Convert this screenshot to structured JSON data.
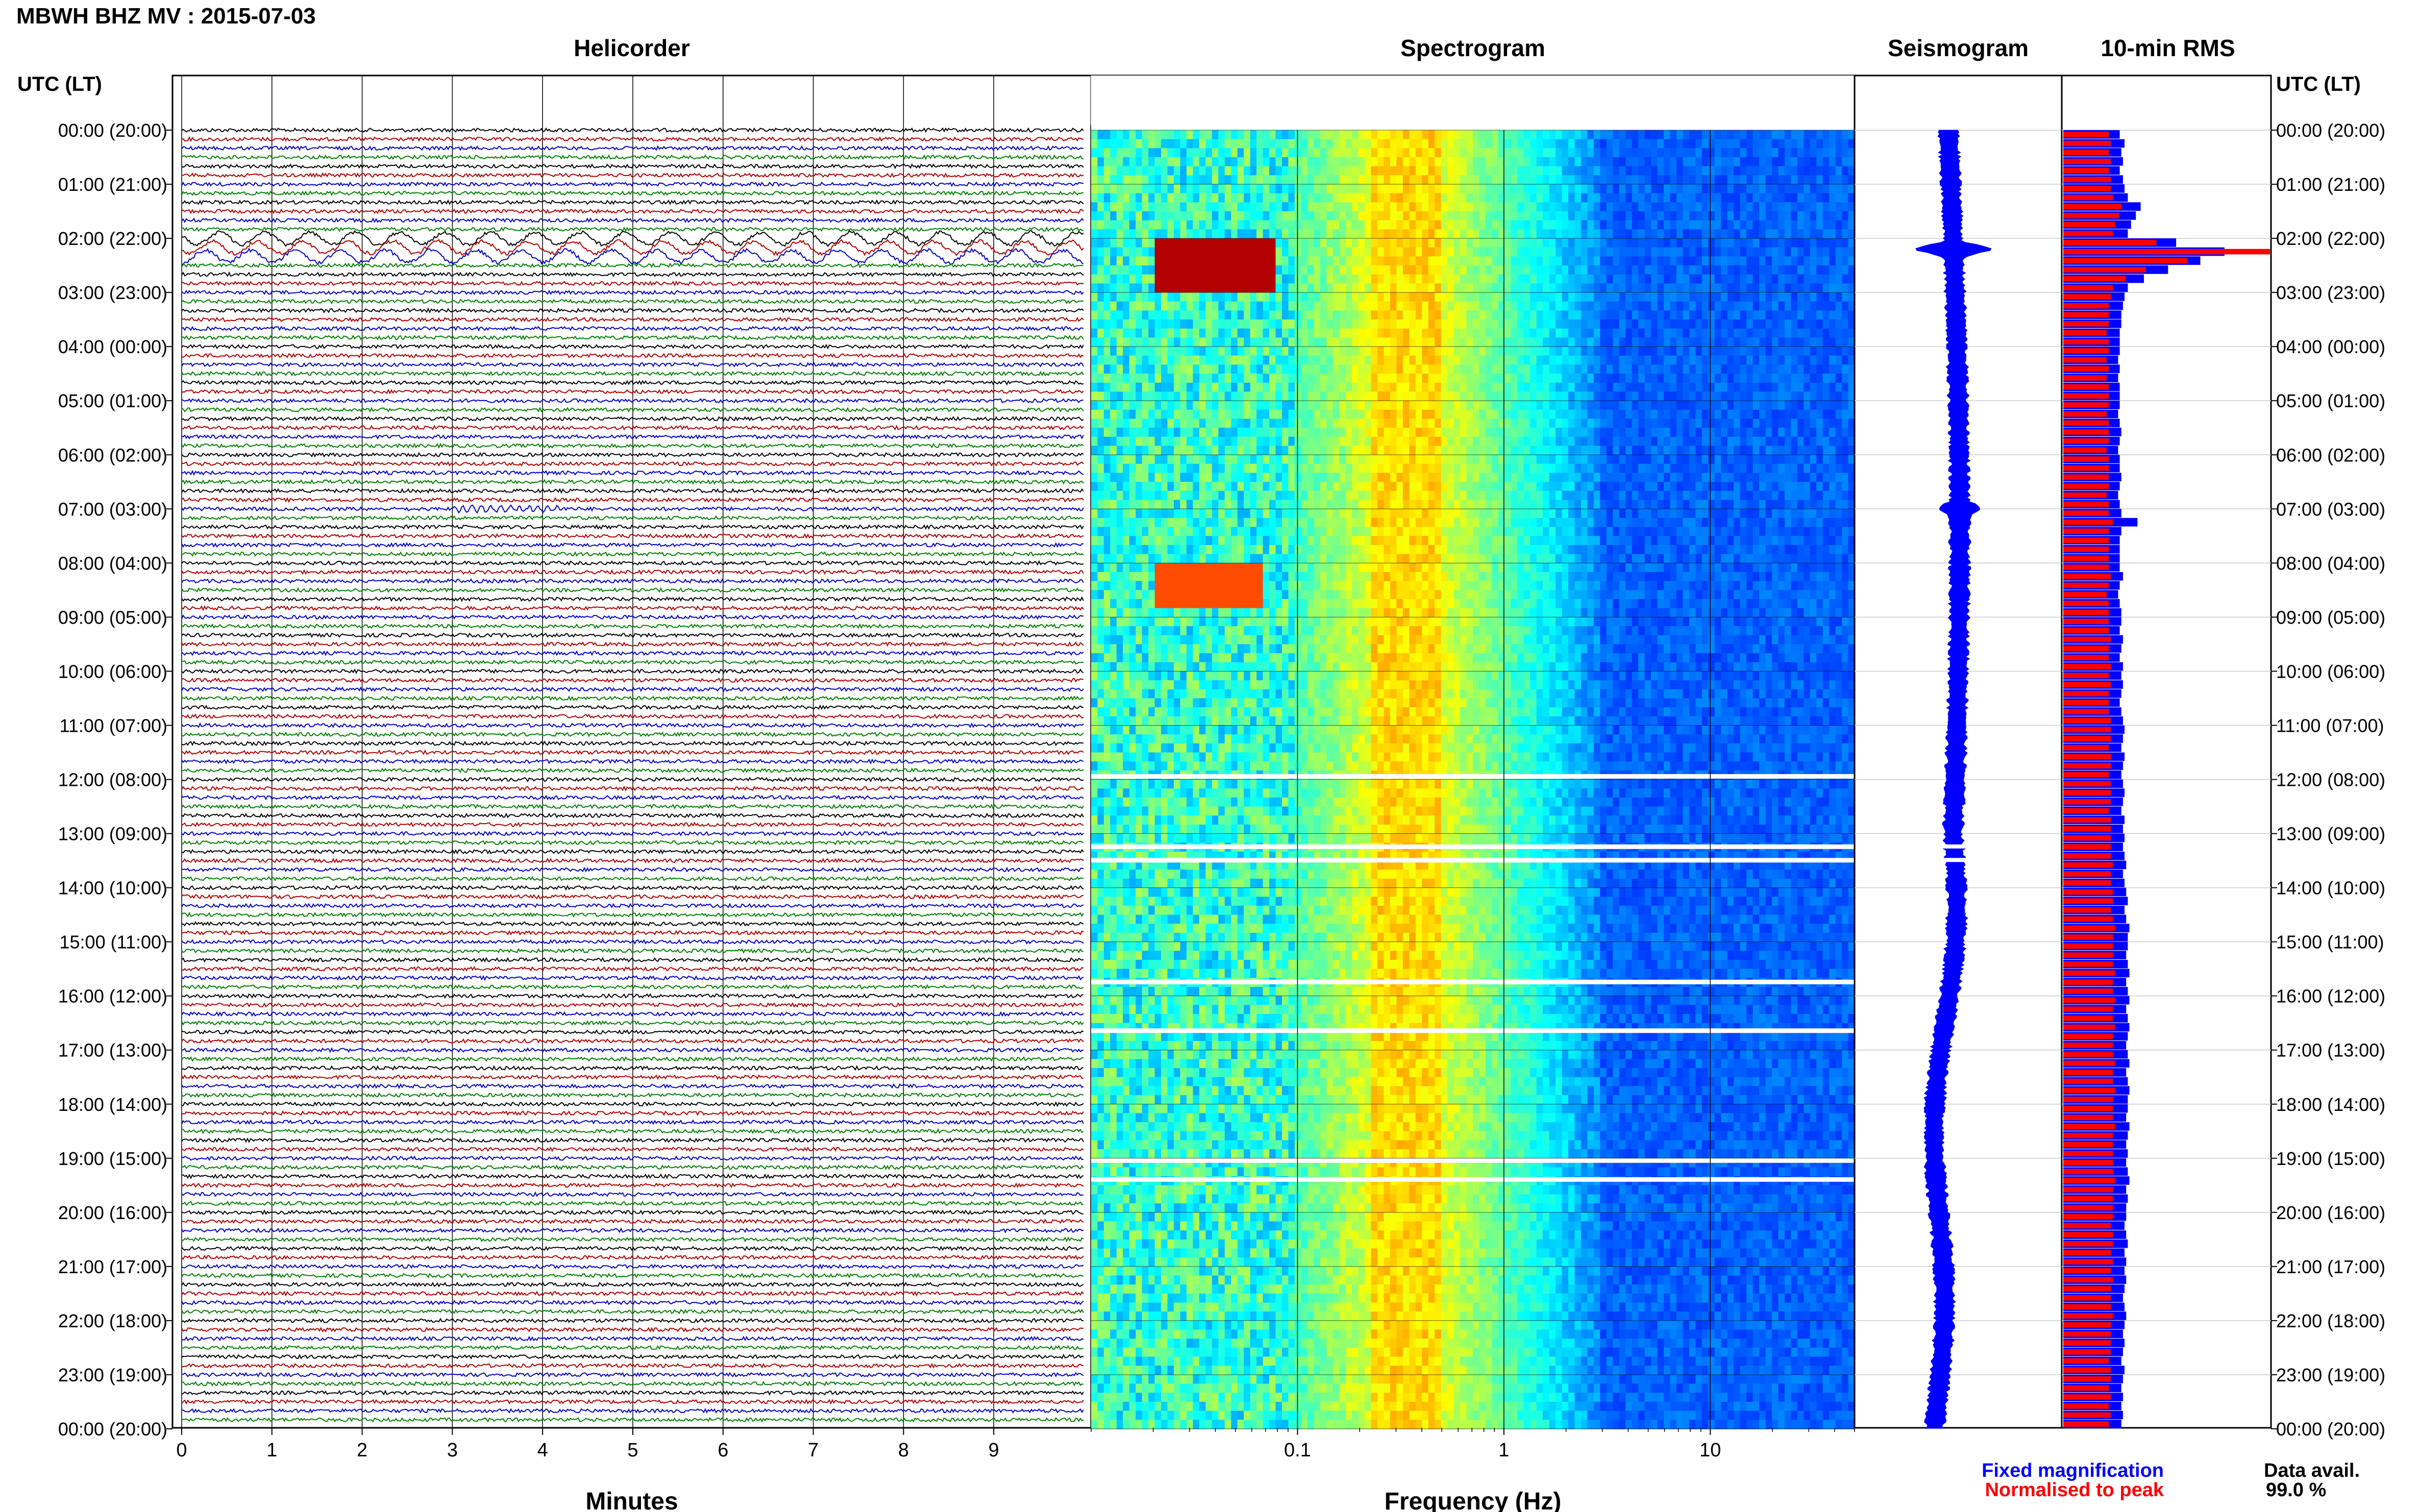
{
  "header": {
    "station_title": "MBWH BHZ MV : 2015-07-03"
  },
  "panels": {
    "helicorder": "Helicorder",
    "spectrogram": "Spectrogram",
    "seismogram": "Seismogram",
    "rms": "10-min RMS"
  },
  "axis_labels": {
    "time_left": "UTC (LT)",
    "time_right": "UTC (LT)",
    "minutes": "Minutes",
    "frequency": "Frequency (Hz)"
  },
  "legend": {
    "fixed": "Fixed magnification",
    "normalised": "Normalised to peak",
    "fixed_color": "#0000ff",
    "normalised_color": "#ff0000"
  },
  "data_avail": {
    "label": "Data avail.",
    "value": "99.0 %"
  },
  "time_ticks": [
    "00:00 (20:00)",
    "01:00 (21:00)",
    "02:00 (22:00)",
    "03:00 (23:00)",
    "04:00 (00:00)",
    "05:00 (01:00)",
    "06:00 (02:00)",
    "07:00 (03:00)",
    "08:00 (04:00)",
    "09:00 (05:00)",
    "10:00 (06:00)",
    "11:00 (07:00)",
    "12:00 (08:00)",
    "13:00 (09:00)",
    "14:00 (10:00)",
    "15:00 (11:00)",
    "16:00 (12:00)",
    "17:00 (13:00)",
    "18:00 (14:00)",
    "19:00 (15:00)",
    "20:00 (16:00)",
    "21:00 (17:00)",
    "22:00 (18:00)",
    "23:00 (19:00)",
    "00:00 (20:00)"
  ],
  "chart_data": [
    {
      "type": "line",
      "panel": "helicorder",
      "xlabel": "Minutes",
      "xlim": [
        0,
        10
      ],
      "x_ticks": [
        0,
        1,
        2,
        3,
        4,
        5,
        6,
        7,
        8,
        9
      ],
      "lines_per_hour": 6,
      "trace_colors": [
        "#000000",
        "#b00000",
        "#0000c8",
        "#008000"
      ],
      "events": [
        {
          "hour": 2.0,
          "hour_end": 2.5,
          "amplitude": "large",
          "note_period_minutes": 0.5
        },
        {
          "hour": 7.0,
          "hour_end": 7.1,
          "amplitude": "small"
        }
      ]
    },
    {
      "type": "heatmap",
      "panel": "spectrogram",
      "xlabel": "Frequency (Hz)",
      "xscale": "log",
      "xlim": [
        0.01,
        50
      ],
      "x_ticks": [
        0.1,
        1,
        10
      ],
      "colormap": "jet",
      "ridge_low_hz": 0.25,
      "noise_corner_hz": 3,
      "gaps_hours": [
        11.9,
        13.2,
        13.45,
        15.7,
        16.6,
        19.0,
        19.35
      ],
      "hot_spots": [
        {
          "hour_from": 2.0,
          "hour_to": 2.9,
          "f_from": 0.02,
          "f_to": 0.08,
          "level": "red"
        },
        {
          "hour_from": 8.0,
          "hour_to": 8.7,
          "f_from": 0.02,
          "f_to": 0.07,
          "level": "orange"
        }
      ]
    },
    {
      "type": "line",
      "panel": "seismogram",
      "color": "#0000ff",
      "events": [
        {
          "hour": 2.2,
          "amplitude": "large"
        },
        {
          "hour": 7.0,
          "amplitude": "small"
        }
      ]
    },
    {
      "type": "bar",
      "panel": "rms",
      "orientation": "horizontal",
      "bin_minutes": 10,
      "series": [
        {
          "name": "Fixed magnification",
          "color": "#0000ff"
        },
        {
          "name": "Normalised to peak",
          "color": "#ff0000"
        }
      ],
      "fixed_values": [
        0.35,
        0.38,
        0.36,
        0.37,
        0.35,
        0.37,
        0.38,
        0.4,
        0.48,
        0.45,
        0.42,
        0.4,
        0.7,
        1.0,
        0.85,
        0.65,
        0.5,
        0.4,
        0.38,
        0.37,
        0.36,
        0.36,
        0.35,
        0.35,
        0.35,
        0.34,
        0.35,
        0.34,
        0.35,
        0.35,
        0.35,
        0.34,
        0.35,
        0.36,
        0.35,
        0.34,
        0.35,
        0.35,
        0.36,
        0.35,
        0.34,
        0.35,
        0.36,
        0.46,
        0.36,
        0.35,
        0.35,
        0.35,
        0.35,
        0.37,
        0.35,
        0.34,
        0.35,
        0.36,
        0.36,
        0.35,
        0.37,
        0.36,
        0.35,
        0.37,
        0.36,
        0.37,
        0.36,
        0.35,
        0.36,
        0.37,
        0.38,
        0.37,
        0.36,
        0.38,
        0.37,
        0.36,
        0.37,
        0.38,
        0.37,
        0.36,
        0.38,
        0.37,
        0.38,
        0.37,
        0.38,
        0.39,
        0.37,
        0.38,
        0.39,
        0.4,
        0.38,
        0.39,
        0.41,
        0.4,
        0.4,
        0.39,
        0.4,
        0.41,
        0.39,
        0.4,
        0.41,
        0.39,
        0.4,
        0.41,
        0.4,
        0.39,
        0.4,
        0.41,
        0.39,
        0.4,
        0.41,
        0.4,
        0.4,
        0.39,
        0.41,
        0.4,
        0.39,
        0.4,
        0.39,
        0.4,
        0.41,
        0.39,
        0.4,
        0.39,
        0.39,
        0.38,
        0.39,
        0.4,
        0.38,
        0.39,
        0.38,
        0.39,
        0.38,
        0.37,
        0.38,
        0.39,
        0.38,
        0.37,
        0.38,
        0.37,
        0.36,
        0.38,
        0.37,
        0.36,
        0.37,
        0.36,
        0.37,
        0.36
      ],
      "normalised_values": [
        0.22,
        0.23,
        0.22,
        0.23,
        0.22,
        0.23,
        0.23,
        0.24,
        0.28,
        0.27,
        0.25,
        0.24,
        0.45,
        1.0,
        0.6,
        0.4,
        0.3,
        0.24,
        0.23,
        0.22,
        0.22,
        0.22,
        0.21,
        0.22,
        0.22,
        0.21,
        0.22,
        0.21,
        0.22,
        0.22,
        0.22,
        0.21,
        0.22,
        0.22,
        0.22,
        0.21,
        0.22,
        0.22,
        0.22,
        0.22,
        0.21,
        0.22,
        0.22,
        0.24,
        0.22,
        0.22,
        0.22,
        0.22,
        0.22,
        0.23,
        0.22,
        0.21,
        0.22,
        0.22,
        0.22,
        0.22,
        0.23,
        0.22,
        0.22,
        0.23,
        0.22,
        0.23,
        0.22,
        0.22,
        0.22,
        0.23,
        0.23,
        0.23,
        0.22,
        0.23,
        0.23,
        0.22,
        0.23,
        0.23,
        0.23,
        0.22,
        0.23,
        0.23,
        0.23,
        0.23,
        0.23,
        0.24,
        0.23,
        0.23,
        0.24,
        0.24,
        0.23,
        0.24,
        0.25,
        0.24,
        0.24,
        0.24,
        0.24,
        0.25,
        0.24,
        0.24,
        0.25,
        0.24,
        0.24,
        0.25,
        0.24,
        0.24,
        0.24,
        0.25,
        0.24,
        0.24,
        0.25,
        0.24,
        0.24,
        0.24,
        0.25,
        0.24,
        0.24,
        0.24,
        0.24,
        0.24,
        0.25,
        0.24,
        0.24,
        0.24,
        0.24,
        0.23,
        0.24,
        0.24,
        0.23,
        0.24,
        0.23,
        0.24,
        0.23,
        0.23,
        0.23,
        0.24,
        0.23,
        0.23,
        0.23,
        0.23,
        0.22,
        0.23,
        0.23,
        0.22,
        0.23,
        0.22,
        0.23,
        0.22
      ]
    }
  ]
}
